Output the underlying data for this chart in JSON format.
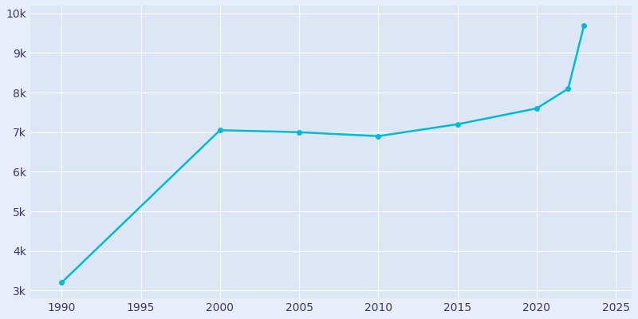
{
  "years": [
    1990,
    2000,
    2005,
    2010,
    2015,
    2020,
    2022,
    2023
  ],
  "population": [
    3200,
    7050,
    7000,
    6900,
    7200,
    7600,
    8100,
    9700
  ],
  "line_color": "#00bcd4",
  "bg_color": "#e8eef7",
  "plot_bg_color": "#dce6f5",
  "grid_color": "#ffffff",
  "tick_color": "#3a3a6a",
  "xlim": [
    1988,
    2026
  ],
  "ylim": [
    2800,
    10200
  ],
  "xticks": [
    1990,
    1995,
    2000,
    2005,
    2010,
    2015,
    2020,
    2025
  ],
  "yticks": [
    3000,
    4000,
    5000,
    6000,
    7000,
    8000,
    9000,
    10000
  ],
  "ytick_labels": [
    "3k",
    "4k",
    "5k",
    "6k",
    "7k",
    "8k",
    "9k",
    "10k"
  ],
  "linewidth": 1.8,
  "marker_size": 4.0
}
